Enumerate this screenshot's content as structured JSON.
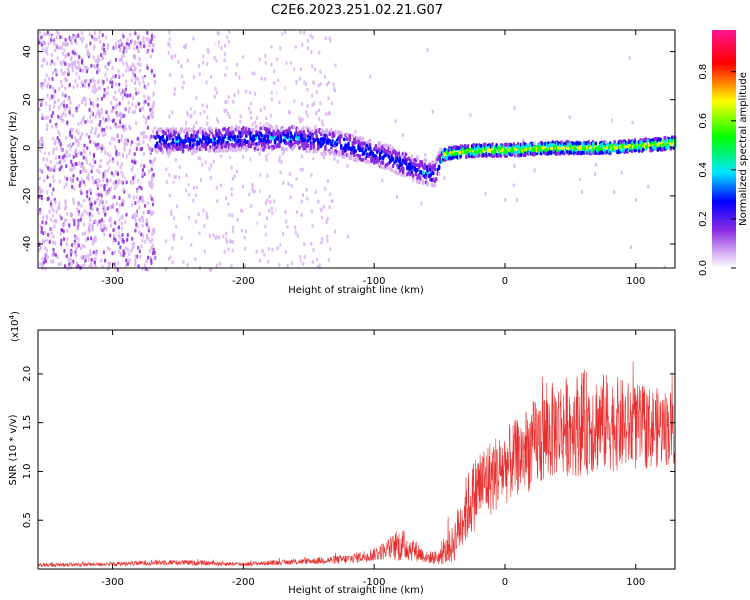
{
  "title": "C2E6.2023.251.02.21.G07",
  "chart_data": [
    {
      "type": "heatmap",
      "xlabel": "Height of straight line (km)",
      "ylabel": "Frequency (Hz)",
      "xlim": [
        -357,
        130
      ],
      "ylim": [
        -50,
        49
      ],
      "x_ticks": [
        -300,
        -200,
        -100,
        0,
        100
      ],
      "y_ticks": [
        -40,
        -20,
        0,
        20,
        40
      ],
      "colorbar": {
        "label": "Normalized spectral amplitude",
        "range": [
          0,
          0.97
        ],
        "ticks": [
          0.0,
          0.2,
          0.4,
          0.6,
          0.8
        ],
        "tick_labels": [
          "0.0",
          "0.2",
          "0.4",
          "0.6",
          "0.8"
        ],
        "colormap": [
          "#ffffff",
          "#d9b3f5",
          "#8a2be2",
          "#0000ff",
          "#00e5ff",
          "#00ff00",
          "#ffff00",
          "#ff0000",
          "#ff1493"
        ]
      },
      "ridge": {
        "x": [
          -268,
          -240,
          -200,
          -160,
          -130,
          -110,
          -90,
          -70,
          -55,
          -48,
          -40,
          -20,
          0,
          40,
          80,
          130
        ],
        "y": [
          3,
          3,
          4,
          4,
          2,
          -1,
          -4,
          -9,
          -11,
          -3,
          -2,
          -1,
          -1,
          0,
          0,
          2
        ]
      },
      "noise_region_x": [
        -357,
        -268
      ],
      "grid": false
    },
    {
      "type": "line",
      "series_color": "#e83030",
      "xlabel": "Height of straight line (km)",
      "ylabel": "SNR (10 * v/v)",
      "y_multiplier": "(x10^4)",
      "y_multiplier_base": "(x10",
      "y_multiplier_exp": "4",
      "y_multiplier_close": ")",
      "xlim": [
        -357,
        130
      ],
      "ylim": [
        0,
        2.45
      ],
      "x_ticks": [
        -300,
        -200,
        -100,
        0,
        100
      ],
      "y_ticks": [
        0.5,
        1.0,
        1.5,
        2.0
      ],
      "y_tick_labels": [
        "0.5",
        "1.0",
        "1.5",
        "2.0"
      ],
      "envelope": {
        "x": [
          -357,
          -300,
          -260,
          -200,
          -150,
          -120,
          -100,
          -90,
          -80,
          -70,
          -60,
          -50,
          -40,
          -30,
          -20,
          -10,
          0,
          10,
          20,
          30,
          40,
          60,
          80,
          100,
          120,
          130
        ],
        "mean": [
          0.04,
          0.05,
          0.07,
          0.05,
          0.08,
          0.1,
          0.15,
          0.2,
          0.25,
          0.2,
          0.12,
          0.12,
          0.25,
          0.6,
          0.85,
          0.95,
          1.05,
          1.15,
          1.25,
          1.35,
          1.45,
          1.5,
          1.5,
          1.45,
          1.45,
          1.45
        ],
        "spread": [
          0.02,
          0.02,
          0.03,
          0.02,
          0.03,
          0.05,
          0.07,
          0.1,
          0.18,
          0.12,
          0.06,
          0.08,
          0.2,
          0.35,
          0.4,
          0.4,
          0.4,
          0.4,
          0.45,
          0.5,
          0.5,
          0.55,
          0.5,
          0.45,
          0.4,
          0.4
        ]
      },
      "grid": false
    }
  ]
}
